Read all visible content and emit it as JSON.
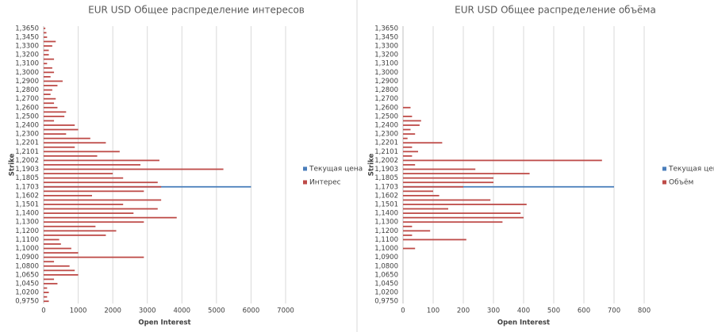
{
  "chart_data": [
    {
      "type": "bar",
      "orientation": "horizontal",
      "title": "EUR USD Общее распределение интересов",
      "x_label": "Open Interest",
      "y_label": "Strike",
      "categories": [
        "1,3650",
        null,
        "1,3450",
        null,
        "1,3300",
        null,
        "1,3200",
        null,
        "1,3100",
        null,
        "1,3000",
        null,
        "1,2900",
        null,
        "1,2800",
        null,
        "1,2700",
        null,
        "1,2600",
        null,
        "1,2500",
        null,
        "1,2400",
        null,
        "1,2300",
        null,
        "1,2201",
        null,
        "1,2101",
        null,
        "1,2002",
        null,
        "1,1903",
        null,
        "1,1805",
        null,
        "1,1703",
        null,
        "1,1602",
        null,
        "1,1501",
        null,
        "1,1400",
        null,
        "1,1300",
        null,
        "1,1200",
        null,
        "1,1100",
        null,
        "1,1000",
        null,
        "1,0900",
        null,
        "1,0800",
        null,
        "1,0650",
        null,
        "1,0450",
        null,
        "1,0200",
        null,
        "0,9750"
      ],
      "series": [
        {
          "name": "Текущая цена",
          "color": "#4a7ebb",
          "values": [
            null,
            null,
            null,
            null,
            null,
            null,
            null,
            null,
            null,
            null,
            null,
            null,
            null,
            null,
            null,
            null,
            null,
            null,
            null,
            null,
            null,
            null,
            null,
            null,
            null,
            null,
            null,
            null,
            null,
            null,
            null,
            null,
            null,
            null,
            null,
            null,
            6000,
            null,
            null,
            null,
            null,
            null,
            null,
            null,
            null,
            null,
            null,
            null,
            null,
            null,
            null,
            null,
            null,
            null,
            null,
            null,
            null,
            null,
            null,
            null,
            null,
            null,
            null
          ]
        },
        {
          "name": "Интерес",
          "color": "#be4b48",
          "values": [
            50,
            80,
            100,
            350,
            250,
            150,
            150,
            300,
            100,
            250,
            300,
            200,
            550,
            400,
            250,
            200,
            350,
            300,
            400,
            650,
            600,
            300,
            900,
            1000,
            650,
            1350,
            1800,
            900,
            2200,
            1550,
            3350,
            2800,
            5200,
            2000,
            2300,
            3300,
            3400,
            2900,
            1400,
            3400,
            2300,
            3300,
            2600,
            3850,
            2900,
            1500,
            2100,
            1800,
            450,
            500,
            800,
            1000,
            2900,
            300,
            750,
            900,
            1000,
            300,
            400,
            100,
            150,
            100,
            150
          ]
        }
      ],
      "xlim": [
        0,
        7000
      ],
      "xticks": [
        0,
        1000,
        2000,
        3000,
        4000,
        5000,
        6000,
        7000
      ],
      "grid": true,
      "legend": "right"
    },
    {
      "type": "bar",
      "orientation": "horizontal",
      "title": "EUR USD Общее распределение объёма",
      "x_label": "Open Interest",
      "y_label": "Strike",
      "categories": [
        "1,3650",
        null,
        "1,3450",
        null,
        "1,3300",
        null,
        "1,3200",
        null,
        "1,3100",
        null,
        "1,3000",
        null,
        "1,2900",
        null,
        "1,2800",
        null,
        "1,2700",
        null,
        "1,2600",
        null,
        "1,2500",
        null,
        "1,2400",
        null,
        "1,2300",
        null,
        "1,2201",
        null,
        "1,2101",
        null,
        "1,2002",
        null,
        "1,1903",
        null,
        "1,1805",
        null,
        "1,1703",
        null,
        "1,1602",
        null,
        "1,1501",
        null,
        "1,1400",
        null,
        "1,1300",
        null,
        "1,1200",
        null,
        "1,1100",
        null,
        "1,1000",
        null,
        "1,0900",
        null,
        "1,0800",
        null,
        "1,0650",
        null,
        "1,0450",
        null,
        "1,0200",
        null,
        "0,9750"
      ],
      "series": [
        {
          "name": "Текущая цена",
          "color": "#4a7ebb",
          "values": [
            null,
            null,
            null,
            null,
            null,
            null,
            null,
            null,
            null,
            null,
            null,
            null,
            null,
            null,
            null,
            null,
            null,
            null,
            null,
            null,
            null,
            null,
            null,
            null,
            null,
            null,
            null,
            null,
            null,
            null,
            null,
            null,
            null,
            null,
            null,
            null,
            700,
            null,
            null,
            null,
            null,
            null,
            null,
            null,
            null,
            null,
            null,
            null,
            null,
            null,
            null,
            null,
            null,
            null,
            null,
            null,
            null,
            null,
            null,
            null,
            null,
            null,
            null
          ]
        },
        {
          "name": "Объём",
          "color": "#be4b48",
          "values": [
            0,
            0,
            0,
            0,
            0,
            0,
            0,
            0,
            0,
            0,
            0,
            0,
            0,
            0,
            0,
            0,
            0,
            0,
            25,
            0,
            30,
            60,
            55,
            25,
            40,
            15,
            130,
            30,
            50,
            30,
            660,
            40,
            240,
            420,
            300,
            300,
            200,
            100,
            120,
            290,
            410,
            150,
            390,
            400,
            330,
            30,
            90,
            30,
            210,
            0,
            40,
            0,
            0,
            0,
            0,
            0,
            0,
            0,
            0,
            0,
            0,
            0,
            0
          ]
        }
      ],
      "xlim": [
        0,
        800
      ],
      "xticks": [
        0,
        100,
        200,
        300,
        400,
        500,
        600,
        700,
        800
      ],
      "grid": true,
      "legend": "right"
    }
  ]
}
